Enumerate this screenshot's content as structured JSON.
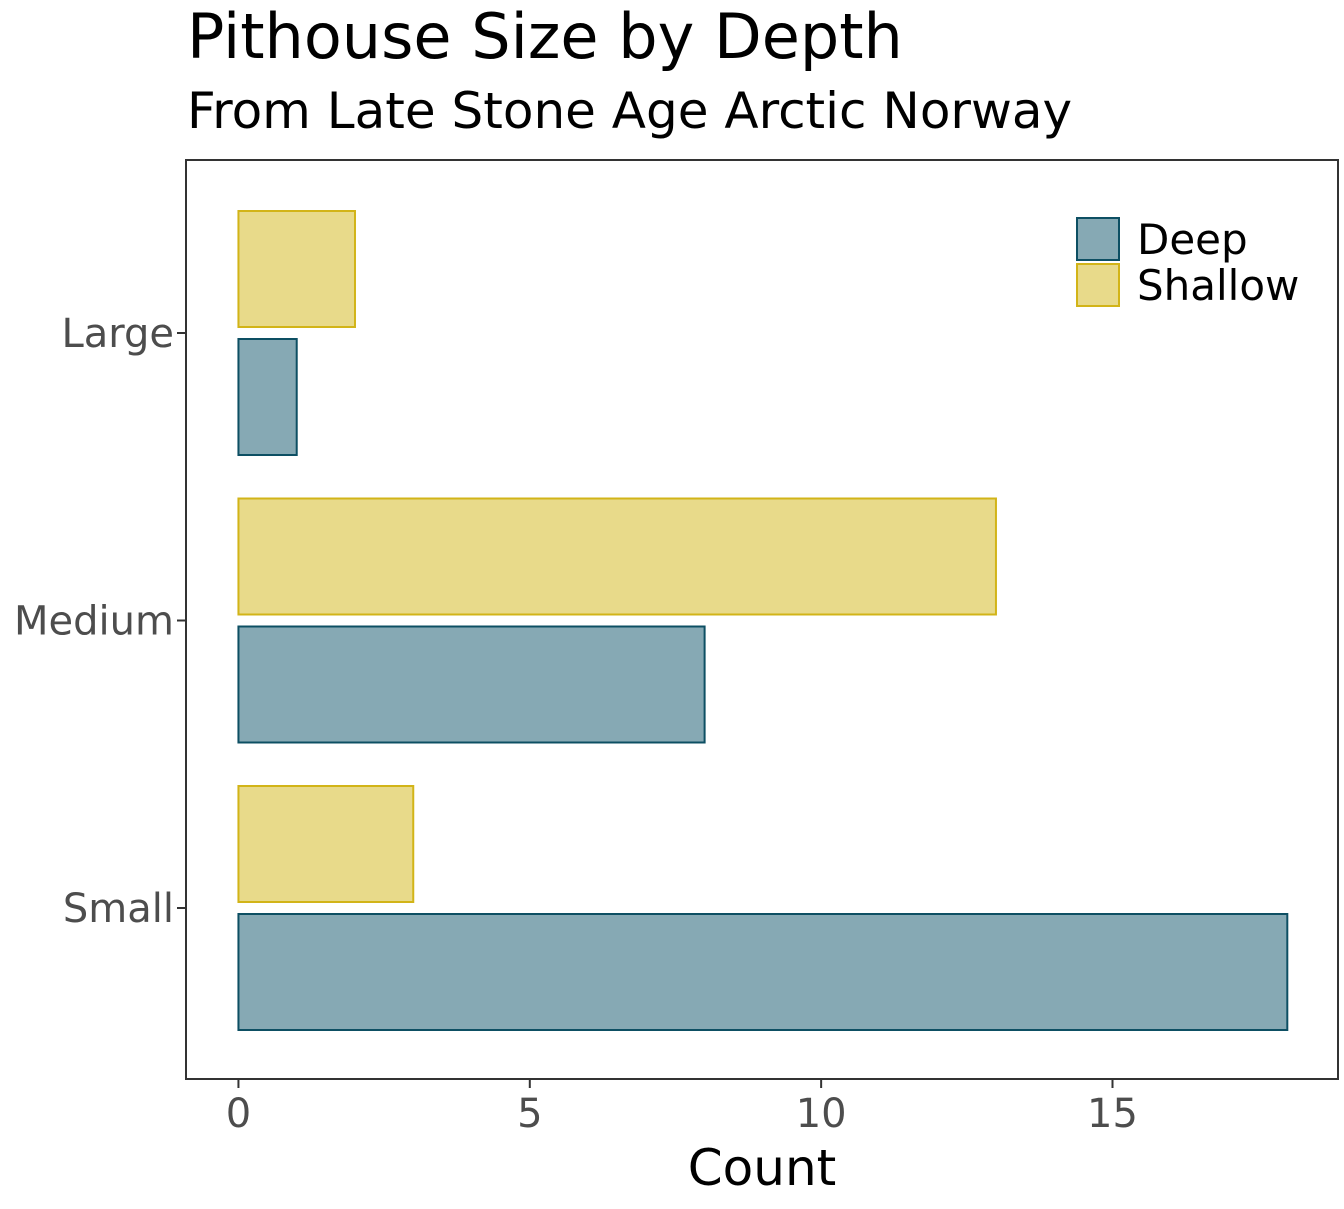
{
  "chart_data": {
    "type": "bar",
    "orientation": "horizontal",
    "title": "Pithouse Size by Depth",
    "subtitle": "From Late Stone Age Arctic Norway",
    "xlabel": "Count",
    "ylabel": "",
    "categories": [
      "Small",
      "Medium",
      "Large"
    ],
    "series": [
      {
        "name": "Deep",
        "values": [
          18,
          8,
          1
        ],
        "fill": "#86a9b4",
        "stroke": "#0d4f63"
      },
      {
        "name": "Shallow",
        "values": [
          3,
          13,
          2
        ],
        "fill": "#e8da8a",
        "stroke": "#d2b418"
      }
    ],
    "xlim": [
      -0.9,
      18.87
    ],
    "xticks": [
      0,
      5,
      10,
      15
    ],
    "xtick_labels": [
      "0",
      "5",
      "10",
      "15"
    ],
    "grid": false,
    "legend_position": "top-right"
  }
}
